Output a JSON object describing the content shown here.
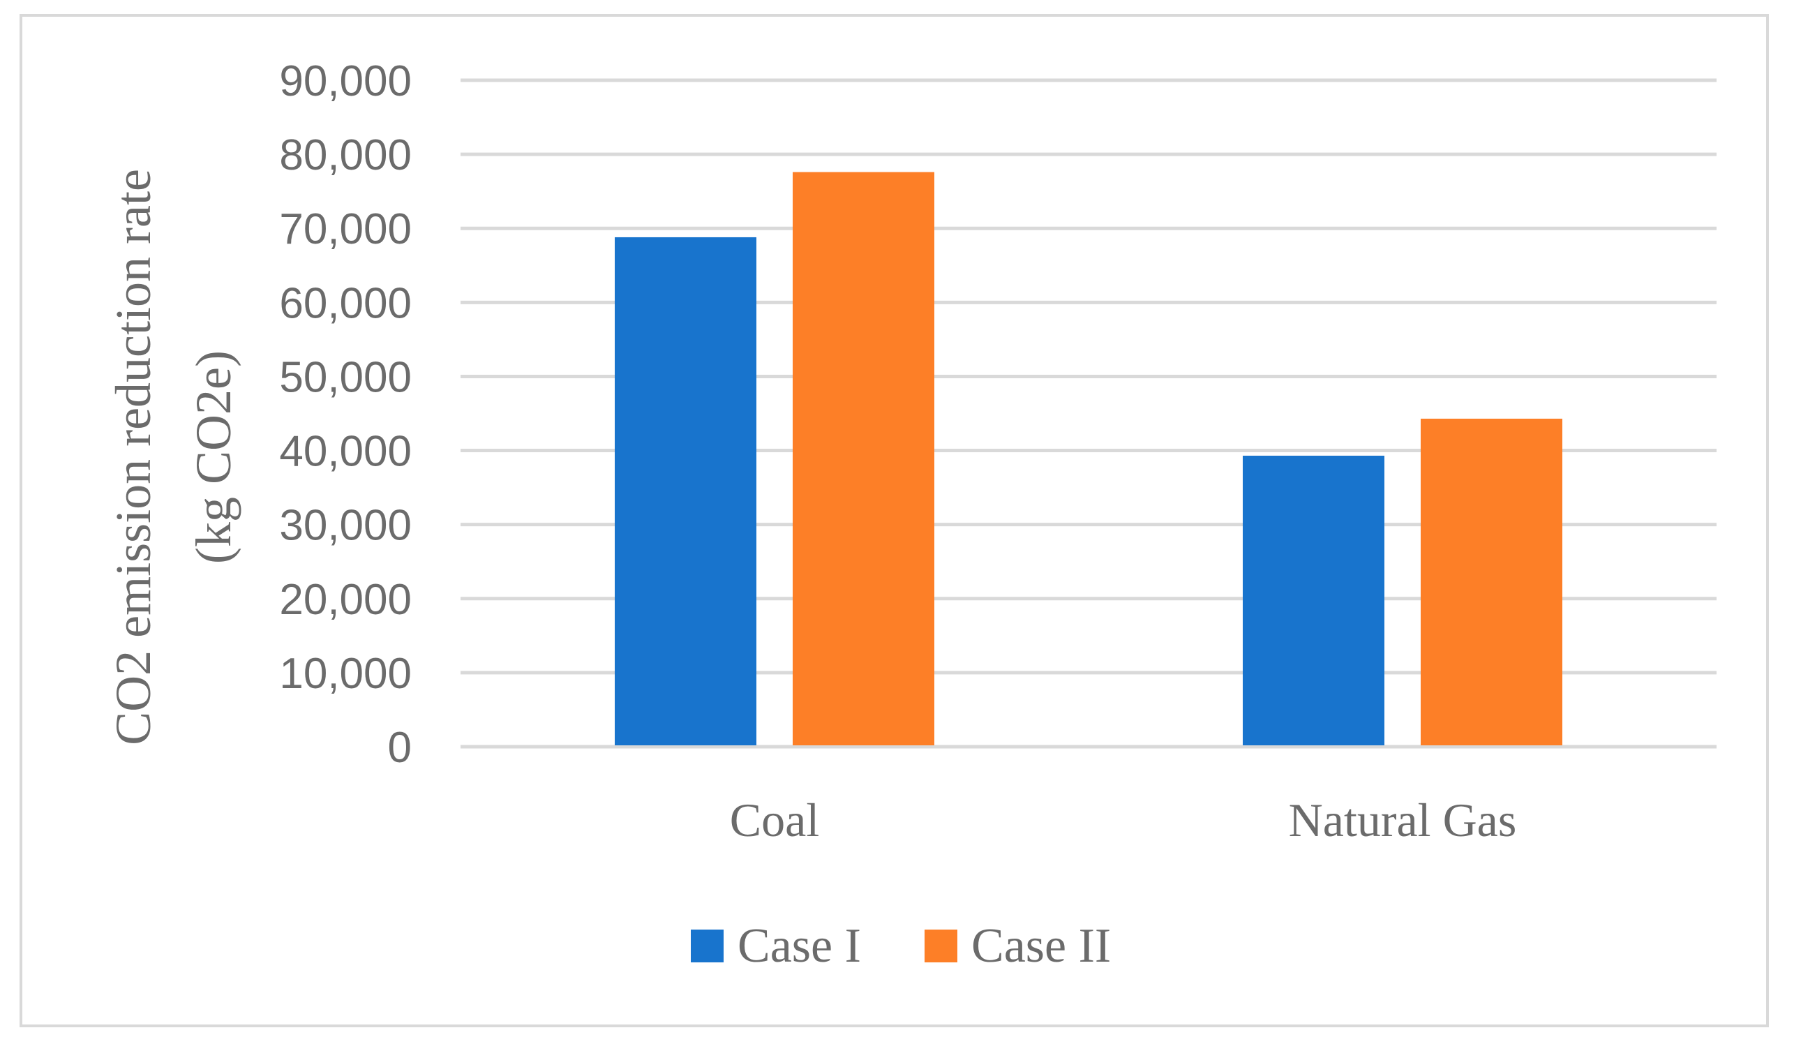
{
  "chart_data": {
    "type": "bar",
    "title": "",
    "xlabel": "",
    "ylabel_lines": [
      "CO2 emission reduction rate",
      "(kg  CO2e)"
    ],
    "categories": [
      "Coal",
      "Natural Gas"
    ],
    "series": [
      {
        "name": "Case I",
        "values": [
          68800,
          39300
        ],
        "color": "#1874cd"
      },
      {
        "name": "Case II",
        "values": [
          77600,
          44300
        ],
        "color": "#fd7f27"
      }
    ],
    "ylim": [
      0,
      90000
    ],
    "yticks": [
      0,
      10000,
      20000,
      30000,
      40000,
      50000,
      60000,
      70000,
      80000,
      90000
    ],
    "ytick_labels": [
      "0",
      "10,000",
      "20,000",
      "30,000",
      "40,000",
      "50,000",
      "60,000",
      "70,000",
      "80,000",
      "90,000"
    ],
    "grid": true,
    "legend_position": "bottom",
    "colors": {
      "grid": "#d9d9d9",
      "text": "#6b6b6b",
      "frame": "#d9d9d9"
    }
  }
}
